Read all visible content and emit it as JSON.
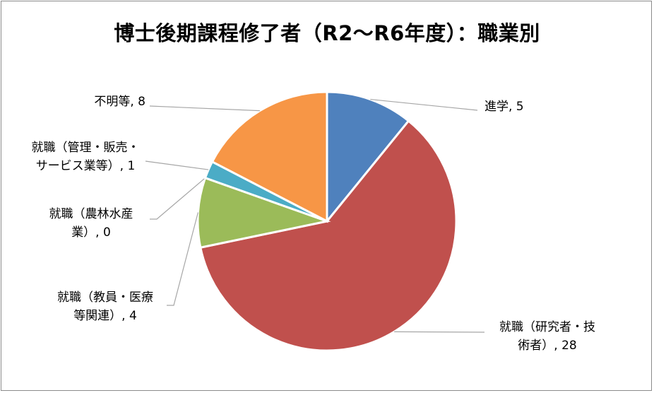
{
  "chart_data": {
    "type": "pie",
    "title": "博士後期課程修了者（R2～R6年度）：職業別",
    "slices": [
      {
        "name": "進学",
        "value": 5,
        "color": "#4f81bd",
        "label_lines": [
          "進学, 5"
        ]
      },
      {
        "name": "就職（研究者・技術者）",
        "value": 28,
        "color": "#c0504d",
        "label_lines": [
          "就職（研究者・技",
          "術者）, 28"
        ]
      },
      {
        "name": "就職（教員・医療等関連）",
        "value": 4,
        "color": "#9bbb59",
        "label_lines": [
          "就職（教員・医療",
          "等関連）, 4"
        ]
      },
      {
        "name": "就職（農林水産業）",
        "value": 0,
        "color": "#8064a2",
        "label_lines": [
          "就職（農林水産",
          "業）, 0"
        ]
      },
      {
        "name": "就職（管理・販売・サービス業等）",
        "value": 1,
        "color": "#4bacc6",
        "label_lines": [
          "就職（管理・販売・",
          "サービス業等）, 1"
        ]
      },
      {
        "name": "不明等",
        "value": 8,
        "color": "#f79646",
        "label_lines": [
          "不明等, 8"
        ]
      }
    ]
  }
}
